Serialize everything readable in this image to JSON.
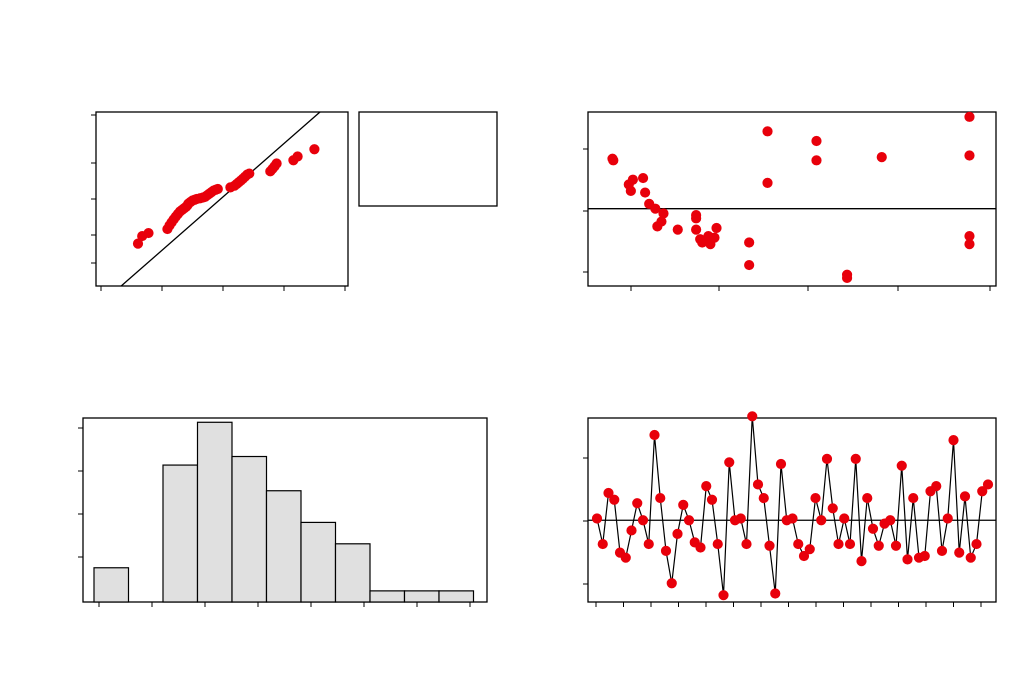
{
  "chart_data": [
    {
      "id": "normal-probability",
      "type": "scatter",
      "title": "",
      "xlabel": "",
      "ylabel": "",
      "xlim": [
        -2.6,
        3.4
      ],
      "ylim": [
        0.2,
        99.8
      ],
      "scale": "normal-probability",
      "reference_line": {
        "from": [
          -2.0,
          0.1
        ],
        "to": [
          3.4,
          99.8
        ]
      },
      "points": [
        [
          -1.6,
          7
        ],
        [
          -1.5,
          11
        ],
        [
          -1.35,
          13
        ],
        [
          -0.9,
          16
        ],
        [
          -0.85,
          19
        ],
        [
          -0.8,
          22
        ],
        [
          -0.75,
          25
        ],
        [
          -0.7,
          28
        ],
        [
          -0.65,
          31
        ],
        [
          -0.6,
          34
        ],
        [
          -0.55,
          36
        ],
        [
          -0.5,
          38
        ],
        [
          -0.45,
          40
        ],
        [
          -0.42,
          42
        ],
        [
          -0.4,
          44
        ],
        [
          -0.35,
          46
        ],
        [
          -0.3,
          48
        ],
        [
          -0.25,
          49
        ],
        [
          -0.2,
          50
        ],
        [
          -0.12,
          51
        ],
        [
          -0.05,
          52
        ],
        [
          0.0,
          53
        ],
        [
          0.05,
          55
        ],
        [
          0.1,
          57
        ],
        [
          0.15,
          59
        ],
        [
          0.2,
          61
        ],
        [
          0.25,
          62
        ],
        [
          0.3,
          63
        ],
        [
          0.6,
          65
        ],
        [
          0.7,
          67
        ],
        [
          0.75,
          69
        ],
        [
          0.8,
          71
        ],
        [
          0.85,
          73
        ],
        [
          0.9,
          75
        ],
        [
          0.95,
          77
        ],
        [
          1.0,
          79
        ],
        [
          1.05,
          80
        ],
        [
          1.55,
          82
        ],
        [
          1.6,
          84
        ],
        [
          1.65,
          86
        ],
        [
          1.7,
          88
        ],
        [
          2.1,
          90
        ],
        [
          2.2,
          92
        ],
        [
          2.6,
          95
        ]
      ],
      "legend_box": true
    },
    {
      "id": "residuals-vs-fits",
      "type": "scatter",
      "title": "",
      "xlabel": "",
      "ylabel": "",
      "xlim": [
        0,
        100
      ],
      "ylim": [
        -2.4,
        3.0
      ],
      "reference_line": {
        "y": 0
      },
      "points": [
        [
          6,
          1.55
        ],
        [
          6.2,
          1.5
        ],
        [
          10,
          0.75
        ],
        [
          10.5,
          0.55
        ],
        [
          11,
          0.9
        ],
        [
          13.5,
          0.95
        ],
        [
          14,
          0.5
        ],
        [
          15,
          0.15
        ],
        [
          16.5,
          0.0
        ],
        [
          17,
          -0.55
        ],
        [
          18,
          -0.4
        ],
        [
          18.5,
          -0.15
        ],
        [
          22,
          -0.65
        ],
        [
          26.5,
          -0.2
        ],
        [
          26.5,
          -0.3
        ],
        [
          26.5,
          -0.65
        ],
        [
          27.5,
          -0.95
        ],
        [
          28,
          -1.05
        ],
        [
          29,
          -1.0
        ],
        [
          29.5,
          -0.85
        ],
        [
          30,
          -1.1
        ],
        [
          31,
          -0.9
        ],
        [
          31.5,
          -0.6
        ],
        [
          39.5,
          -1.05
        ],
        [
          39.5,
          -1.75
        ],
        [
          44,
          2.4
        ],
        [
          44,
          0.8
        ],
        [
          56,
          2.1
        ],
        [
          56,
          1.5
        ],
        [
          63.5,
          -2.05
        ],
        [
          63.5,
          -2.15
        ],
        [
          72,
          1.6
        ],
        [
          93.5,
          2.85
        ],
        [
          93.5,
          1.65
        ],
        [
          93.5,
          -0.85
        ],
        [
          93.5,
          -1.1
        ]
      ]
    },
    {
      "id": "histogram",
      "type": "bar",
      "title": "",
      "xlabel": "",
      "ylabel": "",
      "ylim": [
        0,
        21.5
      ],
      "values": [
        4,
        0,
        16,
        21,
        17,
        13,
        9.3,
        6.8,
        1.3,
        1.3,
        1.3
      ]
    },
    {
      "id": "residuals-vs-order",
      "type": "line",
      "title": "",
      "xlabel": "",
      "ylabel": "",
      "ylim": [
        -2.4,
        3.0
      ],
      "reference_line": {
        "y": 0
      },
      "values": [
        0.05,
        -0.7,
        0.8,
        0.6,
        -0.95,
        -1.1,
        -0.3,
        0.5,
        0.0,
        -0.7,
        2.5,
        0.65,
        -0.9,
        -1.85,
        -0.4,
        0.45,
        0.0,
        -0.65,
        -0.8,
        1.0,
        0.6,
        -0.7,
        -2.2,
        1.7,
        0.0,
        0.05,
        -0.7,
        3.05,
        1.05,
        0.65,
        -0.75,
        -2.15,
        1.65,
        0.0,
        0.05,
        -0.7,
        -1.05,
        -0.85,
        0.65,
        0.0,
        1.8,
        0.35,
        -0.7,
        0.05,
        -0.7,
        1.8,
        -1.2,
        0.65,
        -0.25,
        -0.75,
        -0.1,
        0.0,
        -0.75,
        1.6,
        -1.15,
        0.65,
        -1.1,
        -1.05,
        0.85,
        1.0,
        -0.9,
        0.05,
        2.35,
        -0.95,
        0.7,
        -1.1,
        -0.7,
        0.85,
        1.05
      ]
    }
  ]
}
